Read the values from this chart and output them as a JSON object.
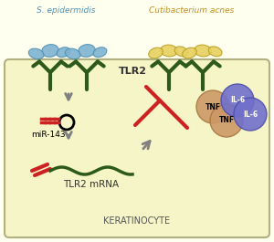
{
  "bg_color": "#fffff0",
  "cell_bg": "#f5f5c8",
  "cell_border": "#b0b080",
  "s_epidermidis_color": "#7fb3d3",
  "c_acnes_color": "#e8d060",
  "receptor_color": "#2d5a1a",
  "text_s_epi": "S. epidermidis",
  "text_c_acnes": "Cutibacterium acnes",
  "text_tlr2": "TLR2",
  "text_mir143": "miR-143",
  "text_tlr2mrna": "TLR2 mRNA",
  "text_keratinocyte": "KERATINOCYTE",
  "text_il6": "IL-6",
  "text_tnf": "TNF",
  "arrow_color": "#808080",
  "inhibit_color": "#cc2222",
  "mir_color": "#cc2222",
  "il6_color": "#7070cc",
  "tnf_color": "#cc9966",
  "mrna_color": "#2d5a1a"
}
